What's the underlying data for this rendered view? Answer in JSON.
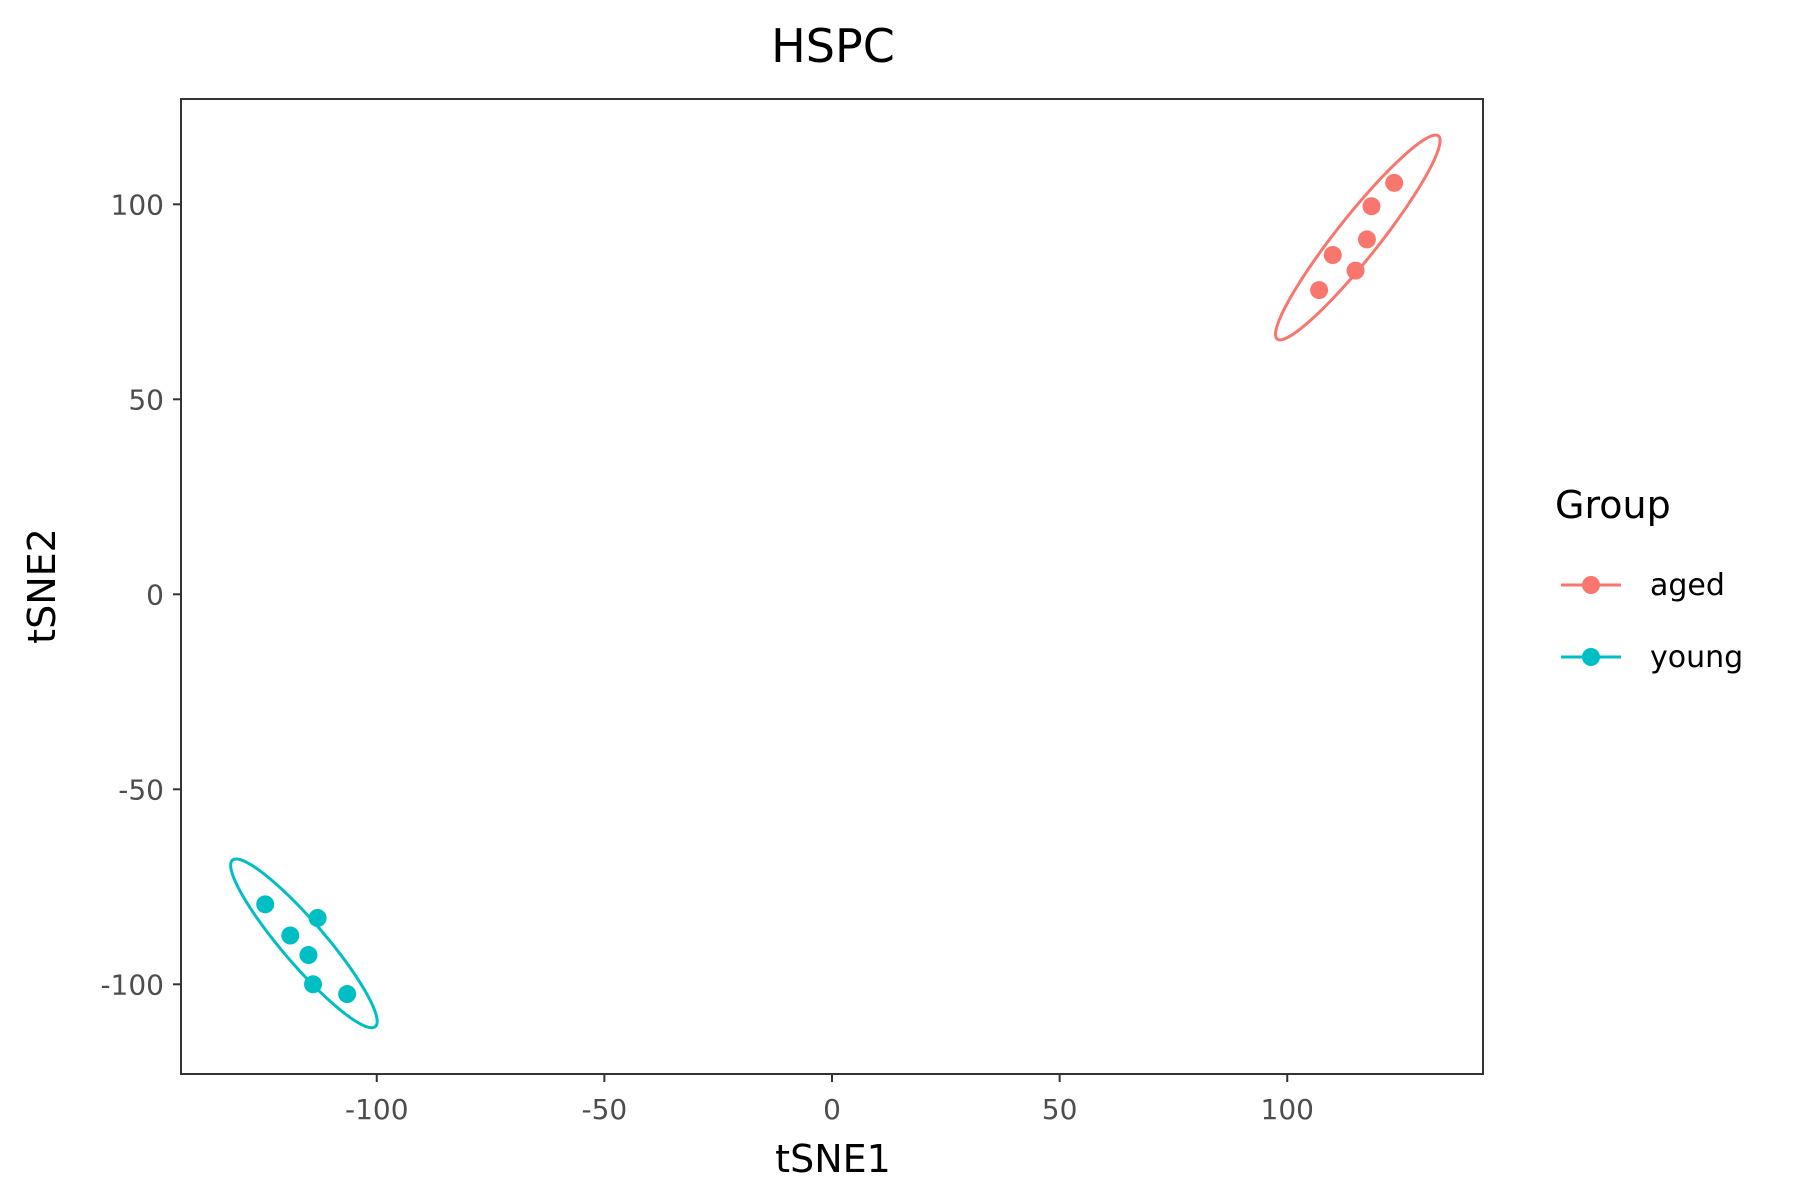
{
  "chart_data": {
    "type": "scatter",
    "title": "HSPC",
    "xlabel": "tSNE1",
    "ylabel": "tSNE2",
    "xlim": [
      -143,
      143
    ],
    "ylim": [
      -123,
      127
    ],
    "xticks": [
      -100,
      -50,
      0,
      50,
      100
    ],
    "yticks": [
      -100,
      -50,
      0,
      50,
      100
    ],
    "xtick_labels": [
      "-100",
      "-50",
      "0",
      "50",
      "100"
    ],
    "ytick_labels": [
      "-100",
      "-50",
      "0",
      "50",
      "100"
    ],
    "grid": false,
    "legend": {
      "title": "Group",
      "placement": "right"
    },
    "series": [
      {
        "name": "aged",
        "color": "#F8766D",
        "points": [
          {
            "x": 123.5,
            "y": 105.5
          },
          {
            "x": 118.5,
            "y": 99.5
          },
          {
            "x": 117.5,
            "y": 91
          },
          {
            "x": 110,
            "y": 87
          },
          {
            "x": 115,
            "y": 83
          },
          {
            "x": 107,
            "y": 78
          }
        ],
        "ellipse": {
          "cx": 115.5,
          "cy": 91.5,
          "semi_major": 31.5,
          "semi_minor": 4.9,
          "angle_deg": 56
        }
      },
      {
        "name": "young",
        "color": "#00BFC4",
        "points": [
          {
            "x": -124.5,
            "y": -79.5
          },
          {
            "x": -113,
            "y": -83
          },
          {
            "x": -119,
            "y": -87.5
          },
          {
            "x": -115,
            "y": -92.5
          },
          {
            "x": -114,
            "y": -100
          },
          {
            "x": -106.5,
            "y": -102.5
          }
        ],
        "ellipse": {
          "cx": -116,
          "cy": -89.5,
          "semi_major": 26.5,
          "semi_minor": 5.0,
          "angle_deg": -54
        }
      }
    ]
  }
}
